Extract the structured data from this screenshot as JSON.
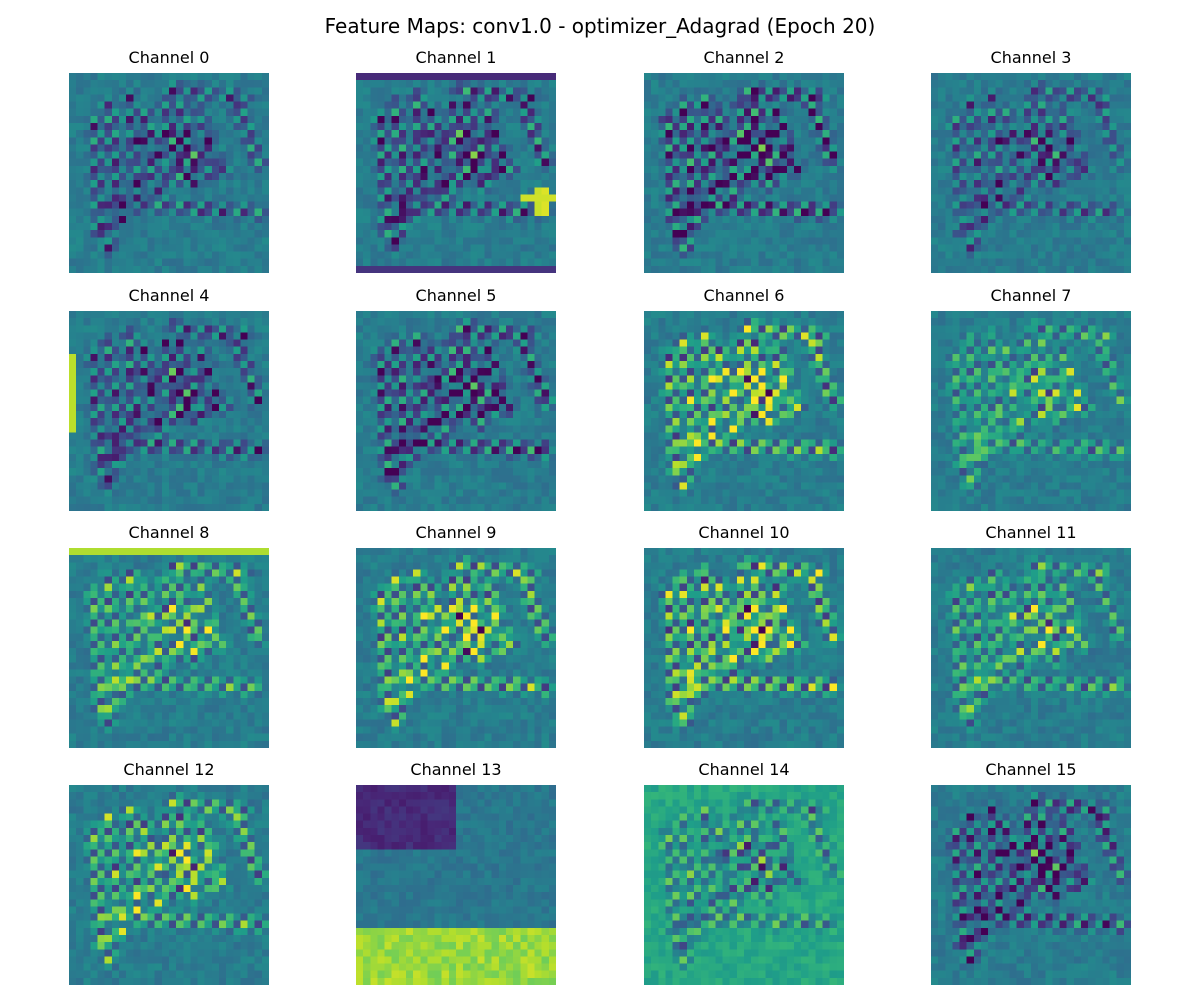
{
  "figure": {
    "title": "Feature Maps: conv1.0 - optimizer_Adagrad (Epoch 20)"
  },
  "chart_data": {
    "type": "heatmap",
    "colormap": "viridis",
    "layer": "conv1.0",
    "optimizer": "Adagrad",
    "epoch": 20,
    "grid": false,
    "axes_visible": false,
    "rows": 4,
    "cols": 4,
    "panels": [
      {
        "title": "Channel 0",
        "channel": 0
      },
      {
        "title": "Channel 1",
        "channel": 1
      },
      {
        "title": "Channel 2",
        "channel": 2
      },
      {
        "title": "Channel 3",
        "channel": 3
      },
      {
        "title": "Channel 4",
        "channel": 4
      },
      {
        "title": "Channel 5",
        "channel": 5
      },
      {
        "title": "Channel 6",
        "channel": 6
      },
      {
        "title": "Channel 7",
        "channel": 7
      },
      {
        "title": "Channel 8",
        "channel": 8
      },
      {
        "title": "Channel 9",
        "channel": 9
      },
      {
        "title": "Channel 10",
        "channel": 10
      },
      {
        "title": "Channel 11",
        "channel": 11
      },
      {
        "title": "Channel 12",
        "channel": 12
      },
      {
        "title": "Channel 13",
        "channel": 13
      },
      {
        "title": "Channel 14",
        "channel": 14
      },
      {
        "title": "Channel 15",
        "channel": 15
      }
    ]
  }
}
